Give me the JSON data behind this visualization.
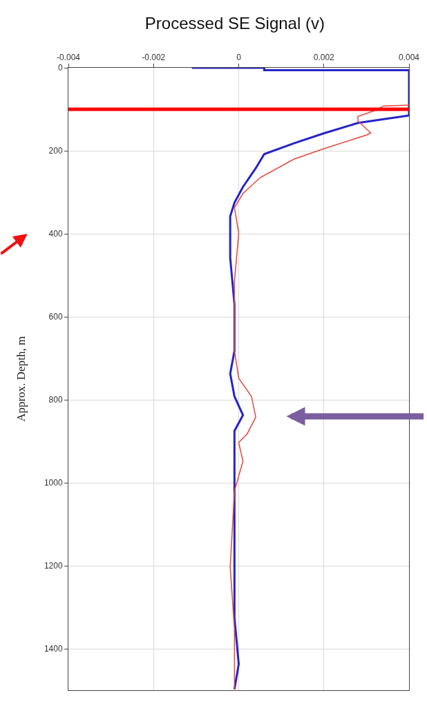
{
  "chart_data": {
    "type": "line",
    "title": "Processed SE Signal (v)",
    "ylabel": "Approx. Depth, m",
    "xlim": [
      -0.004,
      0.004
    ],
    "xticks": [
      -0.004,
      -0.002,
      0,
      0.002,
      0.004
    ],
    "ylim": [
      1500,
      0
    ],
    "yticks": [
      0,
      200,
      400,
      600,
      800,
      1000,
      1200,
      1400
    ],
    "grid": true,
    "marker": "none",
    "line_style": "solid",
    "series": [
      {
        "color": "#2424c8",
        "x": [
          -0.0011,
          0.0006,
          0.0006,
          0.004,
          0.004,
          0.0028,
          0.002,
          0.0013,
          0.0006,
          0.0004,
          0.0001,
          -0.0001,
          -0.0002,
          -0.0002,
          -0.0002,
          -0.0002,
          -0.0001,
          -0.0001,
          -0.0002,
          -0.0001,
          0.0001,
          -0.0001,
          -0.0001,
          -0.0001,
          -0.0001,
          -0.0001,
          -0.0001,
          0,
          -0.0001
        ],
        "values": [
          0,
          0,
          6,
          6,
          115,
          133,
          158,
          182,
          208,
          242,
          287,
          325,
          358,
          415,
          403,
          458,
          570,
          682,
          737,
          792,
          837,
          875,
          948,
          992,
          1103,
          1215,
          1325,
          1437,
          1498
        ]
      },
      {
        "color": "#e8453c",
        "x": [
          0.004,
          0.0034,
          0.0032,
          0.0028,
          0.0028,
          0.0031,
          0.003,
          0.002,
          0.0013,
          0.0005,
          0.0001,
          -0.0001,
          0,
          -0.0001,
          -0.0001,
          0,
          0.0003,
          0.0004,
          0.0002,
          0,
          0.0001,
          -0.0001,
          -0.0002,
          -0.0001,
          -0.0001
        ],
        "values": [
          90,
          92,
          103,
          117,
          128,
          157,
          162,
          195,
          220,
          265,
          303,
          337,
          398,
          515,
          682,
          748,
          792,
          842,
          882,
          903,
          948,
          1020,
          1203,
          1353,
          1498
        ]
      }
    ],
    "ref_lines": [
      {
        "axis": "y",
        "value": 100,
        "color": "#ff0000"
      }
    ]
  }
}
